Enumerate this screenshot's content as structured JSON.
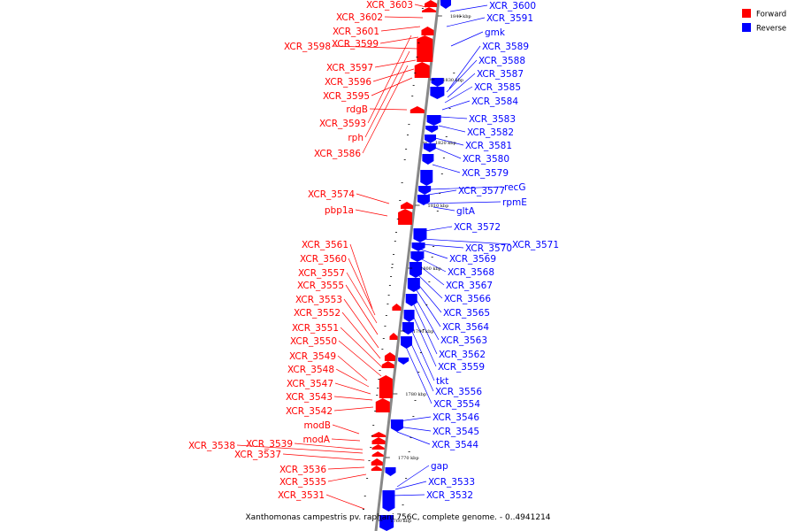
{
  "caption": "Xanthomonas campestris pv. raphani 756C, complete genome. - 0..4941214",
  "legend": [
    {
      "label": "Forward",
      "color": "#ff0000"
    },
    {
      "label": "Reverse",
      "color": "#0000ff"
    }
  ],
  "colors": {
    "forward": "#ff0000",
    "reverse": "#0000ff",
    "backbone": "#888888"
  },
  "ticks": [
    "1840 kbp",
    "1830 kbp",
    "1820 kbp",
    "1810 kbp",
    "1800 kbp",
    "1790 kbp",
    "1780 kbp",
    "1770 kbp",
    "1760 kbp"
  ],
  "forward_labels": [
    "XCR_3603",
    "XCR_3602",
    "XCR_3601",
    "XCR_3599",
    "XCR_3598",
    "XCR_3597",
    "XCR_3596",
    "XCR_3595",
    "rdgB",
    "XCR_3593",
    "rph",
    "XCR_3586",
    "XCR_3574",
    "pbp1a",
    "XCR_3561",
    "XCR_3560",
    "XCR_3557",
    "XCR_3555",
    "XCR_3553",
    "XCR_3552",
    "XCR_3551",
    "XCR_3550",
    "XCR_3549",
    "XCR_3548",
    "XCR_3547",
    "XCR_3543",
    "XCR_3542",
    "modB",
    "modA",
    "XCR_3539",
    "XCR_3538",
    "XCR_3537",
    "XCR_3536",
    "XCR_3535",
    "XCR_3531"
  ],
  "reverse_labels": [
    "XCR_3600",
    "XCR_3591",
    "gmk",
    "XCR_3589",
    "XCR_3588",
    "XCR_3587",
    "XCR_3585",
    "XCR_3584",
    "XCR_3583",
    "XCR_3582",
    "XCR_3581",
    "XCR_3580",
    "XCR_3579",
    "recG",
    "XCR_3577",
    "rpmE",
    "gltA",
    "XCR_3572",
    "XCR_3571",
    "XCR_3570",
    "XCR_3569",
    "XCR_3568",
    "XCR_3567",
    "XCR_3566",
    "XCR_3565",
    "XCR_3564",
    "XCR_3563",
    "XCR_3562",
    "XCR_3559",
    "tkt",
    "XCR_3556",
    "XCR_3554",
    "XCR_3546",
    "XCR_3545",
    "XCR_3544",
    "gap",
    "XCR_3533",
    "XCR_3532"
  ]
}
